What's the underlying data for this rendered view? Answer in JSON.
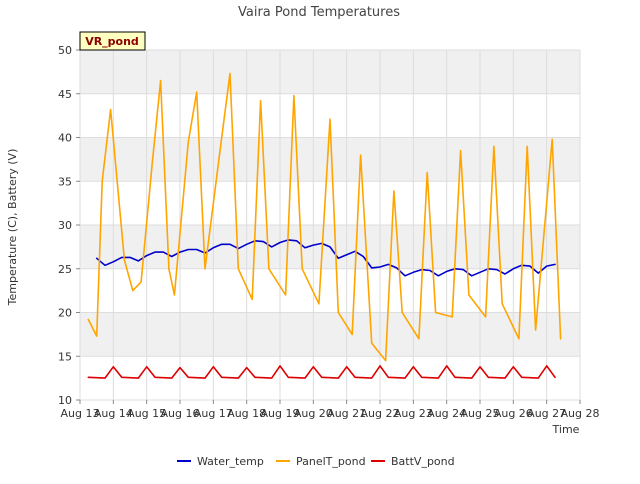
{
  "chart_data": {
    "type": "line",
    "title": "Vaira Pond Temperatures",
    "site_label": "VR_pond",
    "xlabel": "Time",
    "ylabel": "Temperature (C), Battery (V)",
    "xlim": [
      "2023-08-13",
      "2023-08-28"
    ],
    "ylim": [
      10,
      50
    ],
    "x_tick_labels": [
      "Aug 13",
      "Aug 14",
      "Aug 15",
      "Aug 16",
      "Aug 17",
      "Aug 18",
      "Aug 19",
      "Aug 20",
      "Aug 21",
      "Aug 22",
      "Aug 23",
      "Aug 24",
      "Aug 25",
      "Aug 26",
      "Aug 27",
      "Aug 28"
    ],
    "y_ticks": [
      10,
      15,
      20,
      25,
      30,
      35,
      40,
      45,
      50
    ],
    "grid": true,
    "legend_position": "bottom",
    "colors": {
      "background_band": "#f0f0f0",
      "grid": "#dddddd",
      "Water_temp": "#0000cc",
      "PanelT_pond": "#ffa500",
      "BattV_pond": "#dd0000",
      "site_label_bg": "#ffffc0",
      "site_label_text": "#8b0000"
    },
    "series": [
      {
        "name": "Water_temp",
        "color": "#0000cc",
        "x": [
          "2023-08-13 12:00",
          "2023-08-13 18:00",
          "2023-08-14 00:00",
          "2023-08-14 06:00",
          "2023-08-14 12:00",
          "2023-08-14 18:00",
          "2023-08-15 00:00",
          "2023-08-15 06:00",
          "2023-08-15 12:00",
          "2023-08-15 18:00",
          "2023-08-16 00:00",
          "2023-08-16 06:00",
          "2023-08-16 12:00",
          "2023-08-16 18:00",
          "2023-08-17 00:00",
          "2023-08-17 06:00",
          "2023-08-17 12:00",
          "2023-08-17 18:00",
          "2023-08-18 00:00",
          "2023-08-18 06:00",
          "2023-08-18 12:00",
          "2023-08-18 18:00",
          "2023-08-19 00:00",
          "2023-08-19 06:00",
          "2023-08-19 12:00",
          "2023-08-19 18:00",
          "2023-08-20 00:00",
          "2023-08-20 06:00",
          "2023-08-20 12:00",
          "2023-08-20 18:00",
          "2023-08-21 00:00",
          "2023-08-21 06:00",
          "2023-08-21 12:00",
          "2023-08-21 18:00",
          "2023-08-22 00:00",
          "2023-08-22 06:00",
          "2023-08-22 12:00",
          "2023-08-22 18:00",
          "2023-08-23 00:00",
          "2023-08-23 06:00",
          "2023-08-23 12:00",
          "2023-08-23 18:00",
          "2023-08-24 00:00",
          "2023-08-24 06:00",
          "2023-08-24 12:00",
          "2023-08-24 18:00",
          "2023-08-25 00:00",
          "2023-08-25 06:00",
          "2023-08-25 12:00",
          "2023-08-25 18:00",
          "2023-08-26 00:00",
          "2023-08-26 06:00",
          "2023-08-26 12:00",
          "2023-08-26 18:00",
          "2023-08-27 00:00",
          "2023-08-27 06:00"
        ],
        "values": [
          26.2,
          25.4,
          25.8,
          26.3,
          26.3,
          25.9,
          26.5,
          26.9,
          26.9,
          26.4,
          26.9,
          27.2,
          27.2,
          26.8,
          27.4,
          27.8,
          27.8,
          27.3,
          27.8,
          28.2,
          28.1,
          27.5,
          28.0,
          28.3,
          28.2,
          27.4,
          27.7,
          27.9,
          27.5,
          26.2,
          26.6,
          27.0,
          26.4,
          25.1,
          25.2,
          25.5,
          25.1,
          24.2,
          24.6,
          24.9,
          24.8,
          24.2,
          24.7,
          25.0,
          24.9,
          24.2,
          24.6,
          25.0,
          24.9,
          24.4,
          25.0,
          25.4,
          25.3,
          24.5,
          25.3,
          25.5
        ]
      },
      {
        "name": "PanelT_pond",
        "color": "#ffa500",
        "x": [
          "2023-08-13 06:00",
          "2023-08-13 12:00",
          "2023-08-13 16:00",
          "2023-08-13 22:00",
          "2023-08-14 08:00",
          "2023-08-14 14:00",
          "2023-08-14 20:00",
          "2023-08-15 04:00",
          "2023-08-15 10:00",
          "2023-08-15 16:00",
          "2023-08-15 20:00",
          "2023-08-16 06:00",
          "2023-08-16 12:00",
          "2023-08-16 18:00",
          "2023-08-17 06:00",
          "2023-08-17 12:00",
          "2023-08-17 18:00",
          "2023-08-18 04:00",
          "2023-08-18 10:00",
          "2023-08-18 16:00",
          "2023-08-19 04:00",
          "2023-08-19 10:00",
          "2023-08-19 16:00",
          "2023-08-20 04:00",
          "2023-08-20 12:00",
          "2023-08-20 18:00",
          "2023-08-21 04:00",
          "2023-08-21 10:00",
          "2023-08-21 18:00",
          "2023-08-22 04:00",
          "2023-08-22 10:00",
          "2023-08-22 16:00",
          "2023-08-23 04:00",
          "2023-08-23 10:00",
          "2023-08-23 16:00",
          "2023-08-24 04:00",
          "2023-08-24 10:00",
          "2023-08-24 16:00",
          "2023-08-25 04:00",
          "2023-08-25 10:00",
          "2023-08-25 16:00",
          "2023-08-26 04:00",
          "2023-08-26 10:00",
          "2023-08-26 16:00",
          "2023-08-27 04:00",
          "2023-08-27 10:00"
        ],
        "values": [
          19.2,
          17.3,
          35.0,
          43.2,
          26.0,
          22.5,
          23.5,
          37.0,
          46.5,
          25.0,
          22.0,
          39.5,
          45.2,
          25.0,
          40.0,
          47.3,
          25.0,
          21.5,
          44.2,
          25.0,
          22.0,
          44.8,
          25.0,
          21.0,
          42.1,
          20.0,
          17.5,
          38.0,
          16.5,
          14.5,
          33.9,
          20.0,
          17.0,
          36.0,
          20.0,
          19.5,
          38.5,
          22.0,
          19.5,
          39.0,
          21.0,
          17.0,
          39.0,
          18.0,
          39.8,
          17.0
        ]
      },
      {
        "name": "BattV_pond",
        "color": "#dd0000",
        "x": [
          "2023-08-13 06:00",
          "2023-08-13 18:00",
          "2023-08-14 00:00",
          "2023-08-14 06:00",
          "2023-08-14 18:00",
          "2023-08-15 00:00",
          "2023-08-15 06:00",
          "2023-08-15 18:00",
          "2023-08-16 00:00",
          "2023-08-16 06:00",
          "2023-08-16 18:00",
          "2023-08-17 00:00",
          "2023-08-17 06:00",
          "2023-08-17 18:00",
          "2023-08-18 00:00",
          "2023-08-18 06:00",
          "2023-08-18 18:00",
          "2023-08-19 00:00",
          "2023-08-19 06:00",
          "2023-08-19 18:00",
          "2023-08-20 00:00",
          "2023-08-20 06:00",
          "2023-08-20 18:00",
          "2023-08-21 00:00",
          "2023-08-21 06:00",
          "2023-08-21 18:00",
          "2023-08-22 00:00",
          "2023-08-22 06:00",
          "2023-08-22 18:00",
          "2023-08-23 00:00",
          "2023-08-23 06:00",
          "2023-08-23 18:00",
          "2023-08-24 00:00",
          "2023-08-24 06:00",
          "2023-08-24 18:00",
          "2023-08-25 00:00",
          "2023-08-25 06:00",
          "2023-08-25 18:00",
          "2023-08-26 00:00",
          "2023-08-26 06:00",
          "2023-08-26 18:00",
          "2023-08-27 00:00",
          "2023-08-27 06:00"
        ],
        "values": [
          12.6,
          12.5,
          13.8,
          12.6,
          12.5,
          13.8,
          12.6,
          12.5,
          13.7,
          12.6,
          12.5,
          13.8,
          12.6,
          12.5,
          13.7,
          12.6,
          12.5,
          13.9,
          12.6,
          12.5,
          13.8,
          12.6,
          12.5,
          13.8,
          12.6,
          12.5,
          13.9,
          12.6,
          12.5,
          13.8,
          12.6,
          12.5,
          13.9,
          12.6,
          12.5,
          13.8,
          12.6,
          12.5,
          13.8,
          12.6,
          12.5,
          13.9,
          12.6
        ]
      }
    ]
  }
}
